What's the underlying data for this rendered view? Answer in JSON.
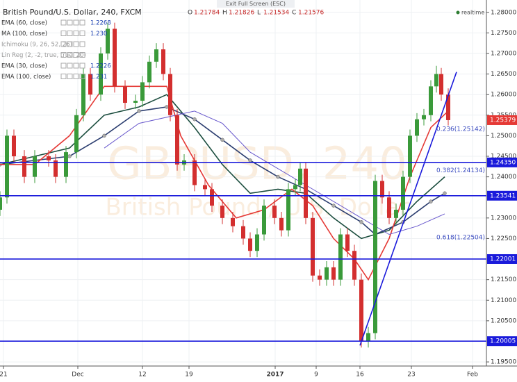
{
  "chart_data": {
    "type": "candlestick",
    "title": "British Pound/U.S. Dollar, 240, FXCM",
    "quote": [
      {
        "key": "O",
        "value": 1.21784
      },
      {
        "key": "H",
        "value": 1.21826
      },
      {
        "key": "L",
        "value": 1.21534
      },
      {
        "key": "C",
        "value": 1.21576
      }
    ],
    "exit_button": "Exit Full Screen (ESC)",
    "status": "realtime",
    "watermark": [
      "GBPUSD, 240",
      "British Pound / U.S. Dollar"
    ],
    "xlim": [
      0,
      175
    ],
    "ylim": [
      1.194,
      1.283
    ],
    "xticks": [
      {
        "value": 1.25,
        "label": "21"
      },
      {
        "value": 28,
        "label": "Dec"
      },
      {
        "value": 51.25,
        "label": "12"
      },
      {
        "value": 68,
        "label": "19"
      },
      {
        "value": 99,
        "label": "2017"
      },
      {
        "value": 113.75,
        "label": "9"
      },
      {
        "value": 129.5,
        "label": "16"
      },
      {
        "value": 148,
        "label": "23"
      },
      {
        "value": 170,
        "label": "Feb"
      }
    ],
    "yticks": [
      {
        "value": 1.28,
        "label": "1.28000"
      },
      {
        "value": 1.275,
        "label": "1.27500"
      },
      {
        "value": 1.27,
        "label": "1.27000"
      },
      {
        "value": 1.265,
        "label": "1.26500"
      },
      {
        "value": 1.26,
        "label": "1.26000"
      },
      {
        "value": 1.255,
        "label": "1.25500"
      },
      {
        "value": 1.25,
        "label": "1.25000"
      },
      {
        "value": 1.245,
        "label": "1.24500"
      },
      {
        "value": 1.24,
        "label": "1.24000"
      },
      {
        "value": 1.23,
        "label": "1.23000"
      },
      {
        "value": 1.225,
        "label": "1.22500"
      },
      {
        "value": 1.215,
        "label": "1.21500"
      },
      {
        "value": 1.21,
        "label": "1.21000"
      },
      {
        "value": 1.205,
        "label": "1.20500"
      },
      {
        "value": 1.195,
        "label": "1.19500"
      }
    ],
    "grid": true,
    "up_color": "#3a9a3a",
    "down_color": "#d32f2f",
    "candles": [
      {
        "x": 0,
        "open": 1.232,
        "high": 1.2365,
        "low": 1.2305,
        "close": 1.235
      },
      {
        "x": 2.5,
        "open": 1.235,
        "high": 1.2515,
        "low": 1.2335,
        "close": 1.25
      },
      {
        "x": 5,
        "open": 1.25,
        "high": 1.2515,
        "low": 1.2435,
        "close": 1.245
      },
      {
        "x": 8.75,
        "open": 1.245,
        "high": 1.2465,
        "low": 1.2385,
        "close": 1.24
      },
      {
        "x": 12.5,
        "open": 1.24,
        "high": 1.2465,
        "low": 1.2385,
        "close": 1.245
      },
      {
        "x": 17.5,
        "open": 1.245,
        "high": 1.2465,
        "low": 1.2425,
        "close": 1.244
      },
      {
        "x": 20,
        "open": 1.244,
        "high": 1.2455,
        "low": 1.2385,
        "close": 1.24
      },
      {
        "x": 23.75,
        "open": 1.24,
        "high": 1.2475,
        "low": 1.2385,
        "close": 1.246
      },
      {
        "x": 27.5,
        "open": 1.246,
        "high": 1.2565,
        "low": 1.2445,
        "close": 1.255
      },
      {
        "x": 30,
        "open": 1.255,
        "high": 1.2665,
        "low": 1.2535,
        "close": 1.265
      },
      {
        "x": 32.5,
        "open": 1.265,
        "high": 1.2665,
        "low": 1.2585,
        "close": 1.26
      },
      {
        "x": 36.25,
        "open": 1.26,
        "high": 1.2715,
        "low": 1.2585,
        "close": 1.27
      },
      {
        "x": 38.75,
        "open": 1.27,
        "high": 1.2775,
        "low": 1.2685,
        "close": 1.276
      },
      {
        "x": 41.25,
        "open": 1.276,
        "high": 1.2775,
        "low": 1.2605,
        "close": 1.262
      },
      {
        "x": 45,
        "open": 1.262,
        "high": 1.2635,
        "low": 1.2565,
        "close": 1.258
      },
      {
        "x": 48.75,
        "open": 1.258,
        "high": 1.26,
        "low": 1.2565,
        "close": 1.2585
      },
      {
        "x": 51.25,
        "open": 1.2585,
        "high": 1.2645,
        "low": 1.257,
        "close": 1.263
      },
      {
        "x": 53.75,
        "open": 1.263,
        "high": 1.2695,
        "low": 1.2615,
        "close": 1.268
      },
      {
        "x": 56.25,
        "open": 1.268,
        "high": 1.2725,
        "low": 1.2665,
        "close": 1.271
      },
      {
        "x": 58.75,
        "open": 1.271,
        "high": 1.2725,
        "low": 1.2635,
        "close": 1.265
      },
      {
        "x": 61.25,
        "open": 1.265,
        "high": 1.2665,
        "low": 1.2535,
        "close": 1.255
      },
      {
        "x": 63.75,
        "open": 1.255,
        "high": 1.2565,
        "low": 1.2415,
        "close": 1.243
      },
      {
        "x": 66.25,
        "open": 1.243,
        "high": 1.2455,
        "low": 1.2415,
        "close": 1.244
      },
      {
        "x": 70,
        "open": 1.244,
        "high": 1.2455,
        "low": 1.2365,
        "close": 1.238
      },
      {
        "x": 73.75,
        "open": 1.238,
        "high": 1.2395,
        "low": 1.2355,
        "close": 1.237
      },
      {
        "x": 76.25,
        "open": 1.237,
        "high": 1.2385,
        "low": 1.2315,
        "close": 1.233
      },
      {
        "x": 80,
        "open": 1.233,
        "high": 1.2345,
        "low": 1.2285,
        "close": 1.23
      },
      {
        "x": 83.75,
        "open": 1.23,
        "high": 1.2315,
        "low": 1.2265,
        "close": 1.228
      },
      {
        "x": 87.5,
        "open": 1.228,
        "high": 1.2295,
        "low": 1.2235,
        "close": 1.225
      },
      {
        "x": 90,
        "open": 1.225,
        "high": 1.2265,
        "low": 1.2205,
        "close": 1.222
      },
      {
        "x": 92.5,
        "open": 1.222,
        "high": 1.2275,
        "low": 1.2205,
        "close": 1.226
      },
      {
        "x": 95,
        "open": 1.226,
        "high": 1.2345,
        "low": 1.2245,
        "close": 1.233
      },
      {
        "x": 98.75,
        "open": 1.233,
        "high": 1.2345,
        "low": 1.2285,
        "close": 1.23
      },
      {
        "x": 101.25,
        "open": 1.23,
        "high": 1.2315,
        "low": 1.2255,
        "close": 1.227
      },
      {
        "x": 103.75,
        "open": 1.227,
        "high": 1.2385,
        "low": 1.2255,
        "close": 1.237
      },
      {
        "x": 106.25,
        "open": 1.237,
        "high": 1.2395,
        "low": 1.2355,
        "close": 1.238
      },
      {
        "x": 108,
        "open": 1.238,
        "high": 1.2435,
        "low": 1.2365,
        "close": 1.242
      },
      {
        "x": 110,
        "open": 1.242,
        "high": 1.2435,
        "low": 1.2285,
        "close": 1.23
      },
      {
        "x": 112.5,
        "open": 1.23,
        "high": 1.2315,
        "low": 1.2145,
        "close": 1.216
      },
      {
        "x": 115,
        "open": 1.216,
        "high": 1.2175,
        "low": 1.2135,
        "close": 1.215
      },
      {
        "x": 117.5,
        "open": 1.215,
        "high": 1.2195,
        "low": 1.2135,
        "close": 1.218
      },
      {
        "x": 120,
        "open": 1.218,
        "high": 1.2195,
        "low": 1.2135,
        "close": 1.215
      },
      {
        "x": 122.5,
        "open": 1.215,
        "high": 1.2275,
        "low": 1.2135,
        "close": 1.226
      },
      {
        "x": 125,
        "open": 1.226,
        "high": 1.2275,
        "low": 1.2205,
        "close": 1.222
      },
      {
        "x": 127.5,
        "open": 1.222,
        "high": 1.2235,
        "low": 1.2135,
        "close": 1.215
      },
      {
        "x": 130,
        "open": 1.215,
        "high": 1.2165,
        "low": 1.1985,
        "close": 1.2
      },
      {
        "x": 132.5,
        "open": 1.2,
        "high": 1.2035,
        "low": 1.1985,
        "close": 1.202
      },
      {
        "x": 135,
        "open": 1.202,
        "high": 1.2405,
        "low": 1.2005,
        "close": 1.239
      },
      {
        "x": 137.5,
        "open": 1.239,
        "high": 1.2405,
        "low": 1.2335,
        "close": 1.235
      },
      {
        "x": 140,
        "open": 1.235,
        "high": 1.2365,
        "low": 1.2285,
        "close": 1.23
      },
      {
        "x": 142.5,
        "open": 1.23,
        "high": 1.2335,
        "low": 1.2285,
        "close": 1.232
      },
      {
        "x": 145,
        "open": 1.232,
        "high": 1.2415,
        "low": 1.2305,
        "close": 1.24
      },
      {
        "x": 147.5,
        "open": 1.24,
        "high": 1.2515,
        "low": 1.2385,
        "close": 1.25
      },
      {
        "x": 150,
        "open": 1.25,
        "high": 1.2555,
        "low": 1.2485,
        "close": 1.254
      },
      {
        "x": 152.5,
        "open": 1.254,
        "high": 1.2565,
        "low": 1.2525,
        "close": 1.255
      },
      {
        "x": 155,
        "open": 1.255,
        "high": 1.2635,
        "low": 1.2535,
        "close": 1.262
      },
      {
        "x": 157,
        "open": 1.262,
        "high": 1.267,
        "low": 1.2605,
        "close": 1.265
      },
      {
        "x": 158.75,
        "open": 1.265,
        "high": 1.2665,
        "low": 1.2585,
        "close": 1.26
      },
      {
        "x": 161.25,
        "open": 1.26,
        "high": 1.2615,
        "low": 1.2525,
        "close": 1.25379
      }
    ],
    "indicators": [
      {
        "name": "EMA (60, close)",
        "value": 1.2268,
        "color": "#1b4d3e",
        "x": [
          0,
          25,
          37.5,
          50,
          60,
          70,
          80,
          90,
          100,
          110,
          120,
          130,
          140,
          150,
          160
        ],
        "values": [
          1.243,
          1.247,
          1.255,
          1.257,
          1.26,
          1.252,
          1.243,
          1.236,
          1.237,
          1.236,
          1.23,
          1.225,
          1.227,
          1.234,
          1.24
        ]
      },
      {
        "name": "MA (100, close)",
        "value": 1.23,
        "value_label": "1.230",
        "color": "#2c3e70",
        "x": [
          0,
          25,
          37.5,
          50,
          60,
          70,
          80,
          90,
          100,
          110,
          120,
          130,
          135,
          145,
          155,
          160
        ],
        "values": [
          1.243,
          1.245,
          1.25,
          1.256,
          1.257,
          1.254,
          1.249,
          1.244,
          1.24,
          1.237,
          1.233,
          1.229,
          1.226,
          1.229,
          1.234,
          1.236
        ]
      },
      {
        "name": "Ichimoku (9, 26, 52, 26)"
      },
      {
        "name": "Lin Reg (2, -2, true, true, 20)"
      },
      {
        "name": "EMA (30, close)",
        "value": 1.2226,
        "color": "#e53935",
        "x": [
          0,
          12.5,
          25,
          37.5,
          50,
          60,
          65,
          75,
          85,
          95,
          105,
          112.5,
          120,
          127.5,
          132.5,
          140,
          147.5,
          155,
          161.25
        ],
        "values": [
          1.243,
          1.243,
          1.25,
          1.262,
          1.262,
          1.262,
          1.25,
          1.238,
          1.23,
          1.232,
          1.237,
          1.233,
          1.225,
          1.22,
          1.215,
          1.225,
          1.24,
          1.252,
          1.256
        ]
      },
      {
        "name": "EMA (100, close)",
        "value": 1.231,
        "color": "#6a5acd",
        "x": [
          37.5,
          50,
          70,
          80,
          90,
          100,
          110,
          120,
          132.5,
          140,
          150,
          160
        ],
        "values": [
          1.247,
          1.253,
          1.256,
          1.253,
          1.246,
          1.242,
          1.238,
          1.234,
          1.229,
          1.226,
          1.228,
          1.231
        ]
      }
    ],
    "levels": {
      "values": [
        1.2435,
        1.23541,
        1.22001,
        1.20005
      ],
      "value_labels": [
        "1.24350",
        "1.23541",
        "1.22001",
        "1.20005"
      ],
      "color": "#1a1adb"
    },
    "trendline": {
      "x": [
        129.5,
        164.25
      ],
      "values": [
        1.199,
        1.2655
      ],
      "color": "#1a1adb"
    },
    "last_price": 1.25379,
    "annotations": [
      {
        "text": "0.236(1.25142)",
        "value": 1.25142
      },
      {
        "text": "0.382(1.24134)",
        "value": 1.24134
      },
      {
        "text": "0.618(1.22504)",
        "value": 1.22504
      }
    ]
  }
}
